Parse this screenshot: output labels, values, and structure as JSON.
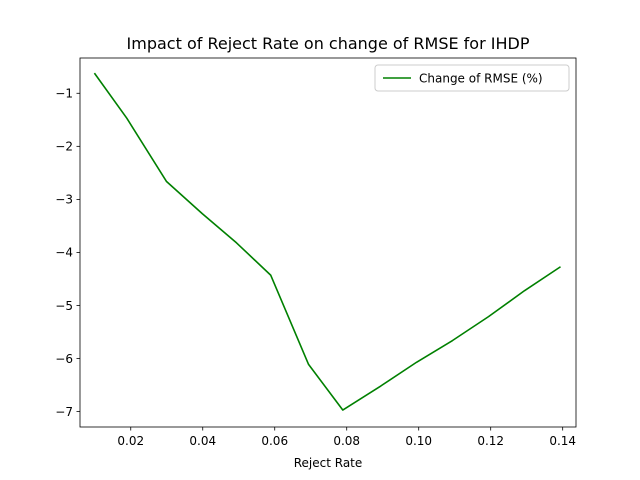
{
  "chart_data": {
    "type": "line",
    "title": "Impact of Reject Rate on change of RMSE for IHDP",
    "xlabel": "Reject Rate",
    "ylabel": "",
    "xlim": [
      0.0059,
      0.1437
    ],
    "ylim": [
      -7.29,
      -0.335
    ],
    "xticks": [
      0.02,
      0.04,
      0.06,
      0.08,
      0.1,
      0.12,
      0.14
    ],
    "xtick_labels": [
      "0.02",
      "0.04",
      "0.06",
      "0.08",
      "0.10",
      "0.12",
      "0.14"
    ],
    "yticks": [
      -1,
      -2,
      -3,
      -4,
      -5,
      -6,
      -7
    ],
    "ytick_labels": [
      "−1",
      "−2",
      "−3",
      "−4",
      "−5",
      "−6",
      "−7"
    ],
    "grid": false,
    "legend_position": "top-right",
    "series": [
      {
        "name": "Change of RMSE (%)",
        "color": "#008000",
        "x": [
          0.0099,
          0.0189,
          0.0299,
          0.0399,
          0.0494,
          0.0589,
          0.0694,
          0.0789,
          0.0894,
          0.0994,
          0.1094,
          0.1194,
          0.1294,
          0.1394
        ],
        "y": [
          -0.62,
          -1.47,
          -2.66,
          -3.27,
          -3.82,
          -4.43,
          -6.11,
          -6.97,
          -6.52,
          -6.07,
          -5.66,
          -5.21,
          -4.72,
          -4.27
        ]
      }
    ]
  }
}
